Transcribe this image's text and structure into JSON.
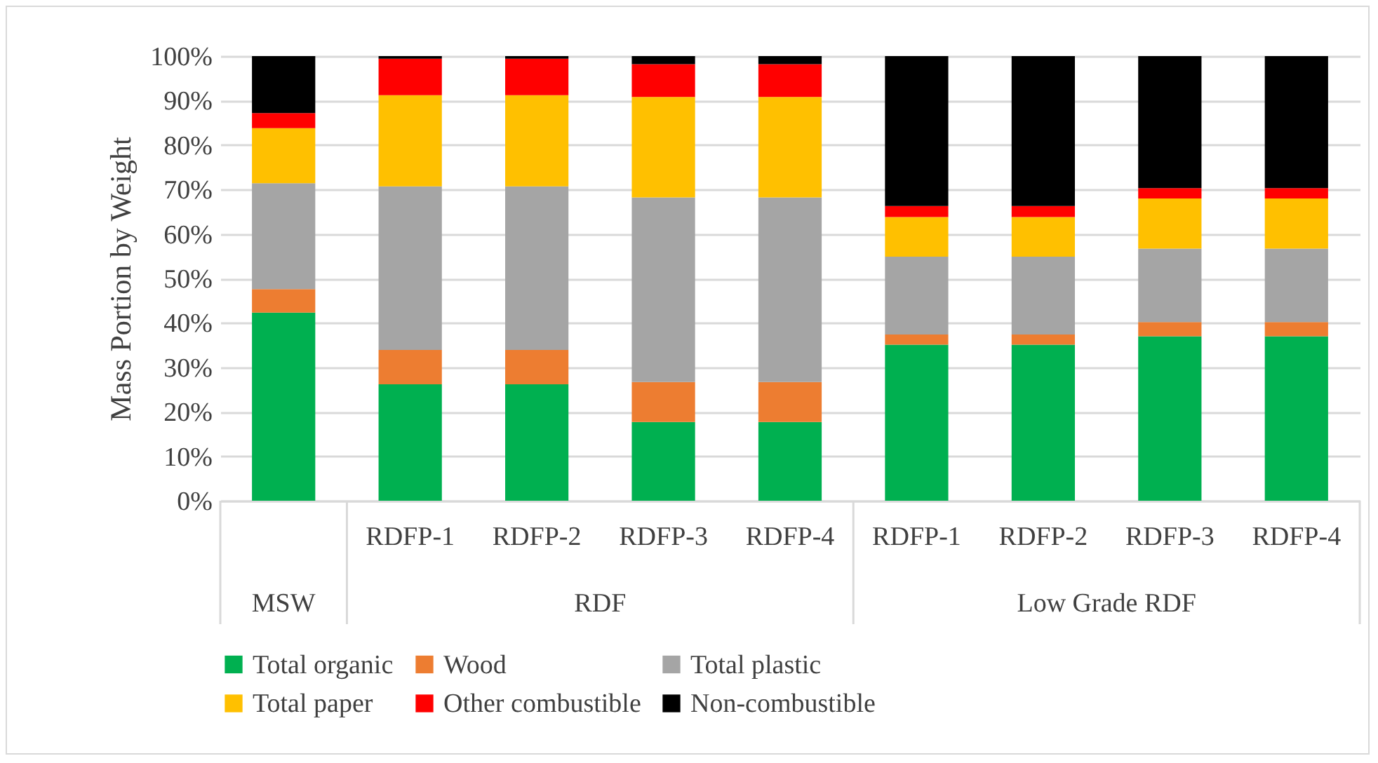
{
  "chart_data": {
    "type": "bar",
    "stacked": true,
    "ylabel": "Mass Portion by Weight",
    "categories": [
      null,
      "RDFP-1",
      "RDFP-2",
      "RDFP-3",
      "RDFP-4",
      "RDFP-1",
      "RDFP-2",
      "RDFP-3",
      "RDFP-4"
    ],
    "annotations": [
      "MSW",
      "RDF",
      "Low Grade RDF"
    ],
    "series": [
      {
        "name": "Total organic",
        "color": "#00b050",
        "values": [
          42.3,
          26.2,
          26.2,
          17.7,
          17.7,
          35.1,
          35.1,
          37.0,
          37.0
        ]
      },
      {
        "name": "Wood",
        "color": "#ed7d31",
        "values": [
          5.3,
          7.7,
          7.7,
          9.0,
          9.0,
          2.3,
          2.3,
          3.2,
          3.2
        ]
      },
      {
        "name": "Total plastic",
        "color": "#a5a5a5",
        "values": [
          23.8,
          36.8,
          36.8,
          41.5,
          41.5,
          17.5,
          17.5,
          16.5,
          16.5
        ]
      },
      {
        "name": "Total paper",
        "color": "#ffc000",
        "values": [
          12.4,
          20.5,
          20.5,
          22.6,
          22.6,
          8.9,
          8.9,
          11.3,
          11.3
        ]
      },
      {
        "name": "Other combustible",
        "color": "#ff0000",
        "values": [
          3.4,
          8.2,
          8.2,
          7.4,
          7.4,
          2.5,
          2.5,
          2.3,
          2.3
        ]
      },
      {
        "name": "Non-combustible",
        "color": "#000000",
        "values": [
          12.8,
          0.6,
          0.6,
          1.8,
          1.8,
          33.7,
          33.7,
          29.7,
          29.7
        ]
      }
    ],
    "ylim": [
      0,
      100
    ],
    "yticks": [
      {
        "value": 0,
        "label": "0%"
      },
      {
        "value": 10,
        "label": "10%"
      },
      {
        "value": 20,
        "label": "20%"
      },
      {
        "value": 30,
        "label": "30%"
      },
      {
        "value": 40,
        "label": "40%"
      },
      {
        "value": 50,
        "label": "50%"
      },
      {
        "value": 60,
        "label": "60%"
      },
      {
        "value": 70,
        "label": "70%"
      },
      {
        "value": 80,
        "label": "80%"
      },
      {
        "value": 90,
        "label": "90%"
      },
      {
        "value": 100,
        "label": "100%"
      }
    ],
    "grid": "y",
    "legend": "bottom"
  }
}
